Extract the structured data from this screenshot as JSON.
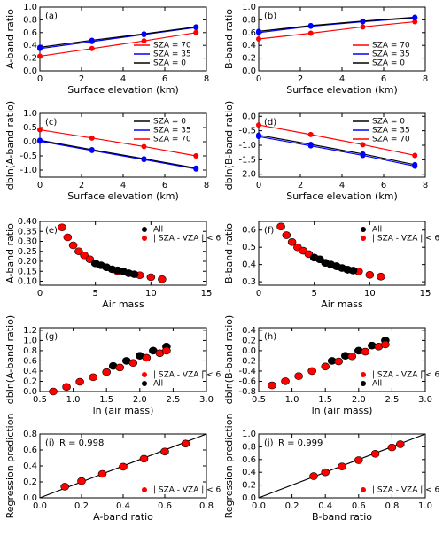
{
  "chart_data": [
    {
      "type": "line",
      "panel": "(a)",
      "xlabel": "Surface elevation (km)",
      "ylabel": "A-band ratio",
      "x": [
        0,
        2.5,
        5,
        7.5
      ],
      "xlim": [
        0,
        8
      ],
      "xticks": [
        0,
        2,
        4,
        6,
        8
      ],
      "ylim": [
        0,
        1
      ],
      "yticks": [
        {
          "value": 0,
          "label": "0.0"
        },
        0.2,
        0.4,
        0.6,
        0.8,
        {
          "value": 1,
          "label": "1.0"
        }
      ],
      "legend": "lower right",
      "series": [
        {
          "name": "SZA = 70",
          "color": "#ff0000",
          "marker_color": "#ff0000",
          "values": [
            0.23,
            0.35,
            0.47,
            0.6
          ]
        },
        {
          "name": "SZA = 35",
          "color": "#0000ff",
          "marker_color": "#0000ff",
          "values": [
            0.35,
            0.46,
            0.57,
            0.68
          ]
        },
        {
          "name": "SZA = 0",
          "color": "#000000",
          "marker_color": "#0000ff",
          "values": [
            0.37,
            0.48,
            0.58,
            0.69
          ]
        }
      ]
    },
    {
      "type": "line",
      "panel": "(b)",
      "xlabel": "Surface elevation (km)",
      "ylabel": "B-band ratio",
      "x": [
        0,
        2.5,
        5,
        7.5
      ],
      "xlim": [
        0,
        8
      ],
      "xticks": [
        0,
        2,
        4,
        6,
        8
      ],
      "ylim": [
        0,
        1
      ],
      "yticks": [
        {
          "value": 0,
          "label": "0.0"
        },
        0.2,
        0.4,
        0.6,
        0.8,
        {
          "value": 1,
          "label": "1.0"
        }
      ],
      "legend": "lower right",
      "series": [
        {
          "name": "SZA = 70",
          "color": "#ff0000",
          "marker_color": "#ff0000",
          "values": [
            0.5,
            0.59,
            0.69,
            0.77
          ]
        },
        {
          "name": "SZA = 35",
          "color": "#0000ff",
          "marker_color": "#0000ff",
          "values": [
            0.6,
            0.7,
            0.77,
            0.83
          ]
        },
        {
          "name": "SZA = 0",
          "color": "#000000",
          "marker_color": "#0000ff",
          "values": [
            0.62,
            0.71,
            0.78,
            0.84
          ]
        }
      ]
    },
    {
      "type": "line",
      "panel": "(c)",
      "xlabel": "Surface elevation (km)",
      "ylabel": "dbln(A-band ratio)",
      "x": [
        0,
        2.5,
        5,
        7.5
      ],
      "xlim": [
        0,
        8
      ],
      "xticks": [
        0,
        2,
        4,
        6,
        8
      ],
      "ylim": [
        -1.25,
        1.0
      ],
      "yticks": [
        {
          "value": -1,
          "label": "-1.0"
        },
        -0.5,
        {
          "value": 0,
          "label": "0.0"
        },
        0.5,
        {
          "value": 1,
          "label": "1.0"
        }
      ],
      "legend": "upper right",
      "series": [
        {
          "name": "SZA = 0",
          "color": "#000000",
          "marker_color": "#0000ff",
          "values": [
            0.05,
            -0.28,
            -0.6,
            -0.93
          ]
        },
        {
          "name": "SZA = 35",
          "color": "#0000ff",
          "marker_color": "#0000ff",
          "values": [
            0.02,
            -0.31,
            -0.63,
            -0.96
          ]
        },
        {
          "name": "SZA = 70",
          "color": "#ff0000",
          "marker_color": "#ff0000",
          "values": [
            0.42,
            0.13,
            -0.17,
            -0.5
          ]
        }
      ]
    },
    {
      "type": "line",
      "panel": "(d)",
      "xlabel": "Surface elevation (km)",
      "ylabel": "dbln(B-band ratio)",
      "x": [
        0,
        2.5,
        5,
        7.5
      ],
      "xlim": [
        0,
        8
      ],
      "xticks": [
        0,
        2,
        4,
        6,
        8
      ],
      "ylim": [
        -2.1,
        0.1
      ],
      "yticks": [
        {
          "value": -2,
          "label": "-2.0"
        },
        -1.5,
        {
          "value": -1,
          "label": "-1.0"
        },
        -0.5,
        {
          "value": 0,
          "label": "0.0"
        }
      ],
      "legend": "upper right",
      "series": [
        {
          "name": "SZA = 0",
          "color": "#000000",
          "marker_color": "#0000ff",
          "values": [
            -0.65,
            -0.97,
            -1.3,
            -1.67
          ]
        },
        {
          "name": "SZA = 35",
          "color": "#0000ff",
          "marker_color": "#0000ff",
          "values": [
            -0.7,
            -1.02,
            -1.35,
            -1.72
          ]
        },
        {
          "name": "SZA = 70",
          "color": "#ff0000",
          "marker_color": "#ff0000",
          "values": [
            -0.3,
            -0.63,
            -0.98,
            -1.35
          ]
        }
      ]
    },
    {
      "type": "scatter",
      "panel": "(e)",
      "xlabel": "Air mass",
      "ylabel": "A-band ratio",
      "xlim": [
        0,
        15
      ],
      "xticks": [
        0,
        5,
        10,
        15
      ],
      "ylim": [
        0.08,
        0.4
      ],
      "yticks": [
        {
          "value": 0.1,
          "label": "0.10"
        },
        0.15,
        {
          "value": 0.2,
          "label": "0.20"
        },
        0.25,
        {
          "value": 0.3,
          "label": "0.30"
        },
        0.35,
        {
          "value": 0.4,
          "label": "0.40"
        }
      ],
      "legend": "upper right",
      "draw_order": [
        1,
        0
      ],
      "series": [
        {
          "name": "All",
          "color": "#000000",
          "x": [
            5,
            5.5,
            6,
            6.5,
            7,
            7.5,
            8,
            8.5
          ],
          "values": [
            0.19,
            0.18,
            0.17,
            0.16,
            0.155,
            0.15,
            0.14,
            0.135
          ]
        },
        {
          "name": "| SZA - VZA | < 6",
          "color": "#ff0000",
          "x": [
            2,
            2.5,
            3,
            3.5,
            4,
            4.5,
            5,
            6,
            7,
            8,
            9,
            10,
            11
          ],
          "values": [
            0.37,
            0.32,
            0.28,
            0.25,
            0.23,
            0.21,
            0.19,
            0.17,
            0.15,
            0.14,
            0.13,
            0.12,
            0.11
          ]
        }
      ]
    },
    {
      "type": "scatter",
      "panel": "(f)",
      "xlabel": "Air mass",
      "ylabel": "B-band ratio",
      "xlim": [
        0,
        15
      ],
      "xticks": [
        0,
        5,
        10,
        15
      ],
      "ylim": [
        0.28,
        0.65
      ],
      "yticks": [
        0.3,
        0.4,
        0.5,
        0.6
      ],
      "legend": "upper right",
      "draw_order": [
        1,
        0
      ],
      "series": [
        {
          "name": "All",
          "color": "#000000",
          "x": [
            5,
            5.5,
            6,
            6.5,
            7,
            7.5,
            8,
            8.5
          ],
          "values": [
            0.44,
            0.43,
            0.41,
            0.4,
            0.39,
            0.38,
            0.37,
            0.365
          ]
        },
        {
          "name": "| SZA - VZA | < 6",
          "color": "#ff0000",
          "x": [
            2,
            2.5,
            3,
            3.5,
            4,
            4.5,
            5,
            6,
            7,
            8,
            9,
            10,
            11
          ],
          "values": [
            0.62,
            0.57,
            0.53,
            0.5,
            0.48,
            0.46,
            0.44,
            0.41,
            0.39,
            0.37,
            0.36,
            0.34,
            0.33
          ]
        }
      ]
    },
    {
      "type": "scatter",
      "panel": "(g)",
      "xlabel": "ln (air mass)",
      "ylabel": "dbln(A-band ratio)",
      "xlim": [
        0.5,
        3.0
      ],
      "xticks": [
        0.5,
        {
          "value": 1,
          "label": "1.0"
        },
        1.5,
        {
          "value": 2,
          "label": "2.0"
        },
        2.5,
        {
          "value": 3,
          "label": "3.0"
        }
      ],
      "ylim": [
        0,
        1.25
      ],
      "yticks": [
        {
          "value": 0,
          "label": "0.0"
        },
        0.2,
        0.4,
        0.6,
        0.8,
        {
          "value": 1,
          "label": "1.0"
        },
        1.2
      ],
      "legend": "lower right",
      "draw_order": [
        1,
        0
      ],
      "series": [
        {
          "name": "| SZA - VZA | < 6",
          "color": "#ff0000",
          "x": [
            0.7,
            0.9,
            1.1,
            1.3,
            1.5,
            1.7,
            1.9,
            2.1,
            2.3,
            2.4
          ],
          "values": [
            0.0,
            0.09,
            0.19,
            0.28,
            0.38,
            0.47,
            0.56,
            0.66,
            0.75,
            0.8
          ]
        },
        {
          "name": "All",
          "color": "#000000",
          "x": [
            1.6,
            1.8,
            2.0,
            2.2,
            2.4
          ],
          "values": [
            0.5,
            0.6,
            0.7,
            0.8,
            0.88
          ]
        }
      ]
    },
    {
      "type": "scatter",
      "panel": "(h)",
      "xlabel": "ln (air mass)",
      "ylabel": "dbln(B-band ratio)",
      "xlim": [
        0.5,
        3.0
      ],
      "xticks": [
        0.5,
        {
          "value": 1,
          "label": "1.0"
        },
        1.5,
        {
          "value": 2,
          "label": "2.0"
        },
        2.5,
        {
          "value": 3,
          "label": "3.0"
        }
      ],
      "ylim": [
        -0.8,
        0.45
      ],
      "yticks": [
        -0.8,
        -0.6,
        -0.4,
        -0.2,
        {
          "value": 0,
          "label": "0.0"
        },
        0.2,
        0.4
      ],
      "legend": "lower right",
      "draw_order": [
        1,
        0
      ],
      "series": [
        {
          "name": "| SZA - VZA | < 6",
          "color": "#ff0000",
          "x": [
            0.7,
            0.9,
            1.1,
            1.3,
            1.5,
            1.7,
            1.9,
            2.1,
            2.3,
            2.4
          ],
          "values": [
            -0.68,
            -0.6,
            -0.5,
            -0.4,
            -0.31,
            -0.21,
            -0.11,
            -0.02,
            0.08,
            0.12
          ]
        },
        {
          "name": "All",
          "color": "#000000",
          "x": [
            1.6,
            1.8,
            2.0,
            2.2,
            2.4
          ],
          "values": [
            -0.2,
            -0.1,
            0.0,
            0.1,
            0.2
          ]
        }
      ]
    },
    {
      "type": "scatter",
      "panel": "(i)",
      "annotation": "R = 0.998",
      "xlabel": "A-band ratio",
      "ylabel": "Regression prediction",
      "xlim": [
        0,
        0.8
      ],
      "xticks": [
        {
          "value": 0,
          "label": "0.0"
        },
        0.2,
        0.4,
        0.6,
        0.8
      ],
      "ylim": [
        0,
        0.8
      ],
      "yticks": [
        {
          "value": 0,
          "label": "0.0"
        },
        0.2,
        0.4,
        0.6,
        0.8
      ],
      "legend": "lower right",
      "one_to_one": true,
      "draw_order": [
        0
      ],
      "series": [
        {
          "name": "| SZA - VZA | < 6",
          "color": "#ff0000",
          "x": [
            0.12,
            0.2,
            0.3,
            0.4,
            0.5,
            0.6,
            0.7
          ],
          "values": [
            0.14,
            0.21,
            0.3,
            0.39,
            0.49,
            0.58,
            0.68
          ]
        }
      ]
    },
    {
      "type": "scatter",
      "panel": "(j)",
      "annotation": "R = 0.999",
      "xlabel": "B-band ratio",
      "ylabel": "Regression prediction",
      "xlim": [
        0,
        1
      ],
      "xticks": [
        {
          "value": 0,
          "label": "0.0"
        },
        0.2,
        0.4,
        0.6,
        0.8,
        {
          "value": 1,
          "label": "1.0"
        }
      ],
      "ylim": [
        0,
        1
      ],
      "yticks": [
        {
          "value": 0,
          "label": "0.0"
        },
        0.2,
        0.4,
        0.6,
        0.8,
        {
          "value": 1,
          "label": "1.0"
        }
      ],
      "legend": "lower right",
      "one_to_one": true,
      "draw_order": [
        0
      ],
      "series": [
        {
          "name": "| SZA - VZA | < 6",
          "color": "#ff0000",
          "x": [
            0.33,
            0.4,
            0.5,
            0.6,
            0.7,
            0.8,
            0.85
          ],
          "values": [
            0.34,
            0.4,
            0.49,
            0.59,
            0.69,
            0.79,
            0.84
          ]
        }
      ]
    }
  ]
}
